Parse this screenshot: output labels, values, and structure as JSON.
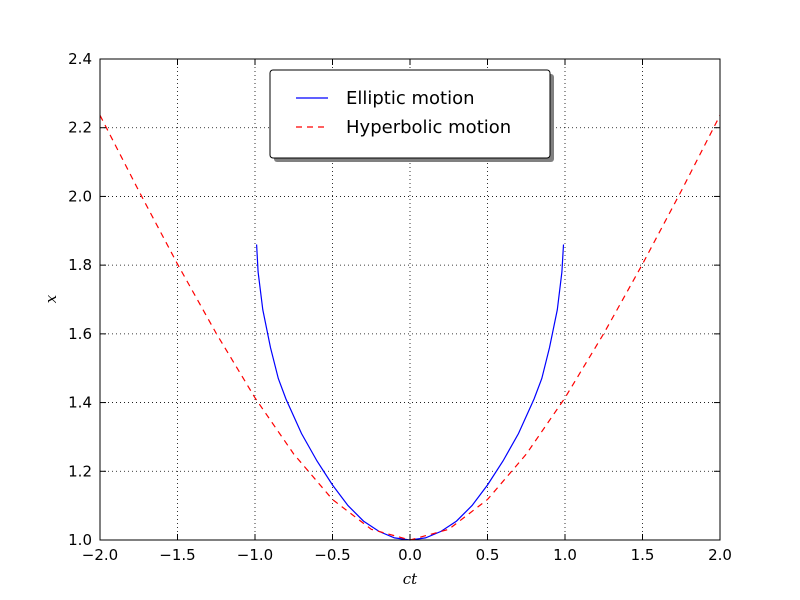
{
  "chart_data": {
    "type": "line",
    "title": "",
    "xlabel": "ct",
    "ylabel": "x",
    "xlim": [
      -2.0,
      2.0
    ],
    "ylim": [
      1.0,
      2.4
    ],
    "xticks": [
      "−2.0",
      "−1.5",
      "−1.0",
      "−0.5",
      "0.0",
      "0.5",
      "1.0",
      "1.5",
      "2.0"
    ],
    "yticks": [
      "1.0",
      "1.2",
      "1.4",
      "1.6",
      "1.8",
      "2.0",
      "2.2",
      "2.4"
    ],
    "grid": true,
    "legend_position": "top-center",
    "series": [
      {
        "name": "Elliptic motion",
        "color": "#0000ff",
        "style": "solid",
        "x": [
          -0.99,
          -0.98,
          -0.95,
          -0.9,
          -0.85,
          -0.8,
          -0.7,
          -0.6,
          -0.5,
          -0.4,
          -0.3,
          -0.2,
          -0.1,
          0.0,
          0.1,
          0.2,
          0.3,
          0.4,
          0.5,
          0.6,
          0.7,
          0.8,
          0.85,
          0.9,
          0.95,
          0.98,
          0.99
        ],
        "y": [
          1.86,
          1.78,
          1.67,
          1.56,
          1.47,
          1.41,
          1.31,
          1.23,
          1.16,
          1.1,
          1.055,
          1.025,
          1.006,
          1.0,
          1.006,
          1.025,
          1.055,
          1.1,
          1.16,
          1.23,
          1.31,
          1.41,
          1.47,
          1.56,
          1.67,
          1.78,
          1.86
        ]
      },
      {
        "name": "Hyperbolic motion",
        "color": "#ff0000",
        "style": "dashed",
        "x": [
          -2.0,
          -1.75,
          -1.5,
          -1.25,
          -1.0,
          -0.75,
          -0.5,
          -0.25,
          0.0,
          0.25,
          0.5,
          0.75,
          1.0,
          1.25,
          1.5,
          1.75,
          2.0
        ],
        "y": [
          2.236,
          2.016,
          1.803,
          1.601,
          1.414,
          1.25,
          1.118,
          1.031,
          1.0,
          1.031,
          1.118,
          1.25,
          1.414,
          1.601,
          1.803,
          2.016,
          2.236
        ]
      }
    ]
  }
}
